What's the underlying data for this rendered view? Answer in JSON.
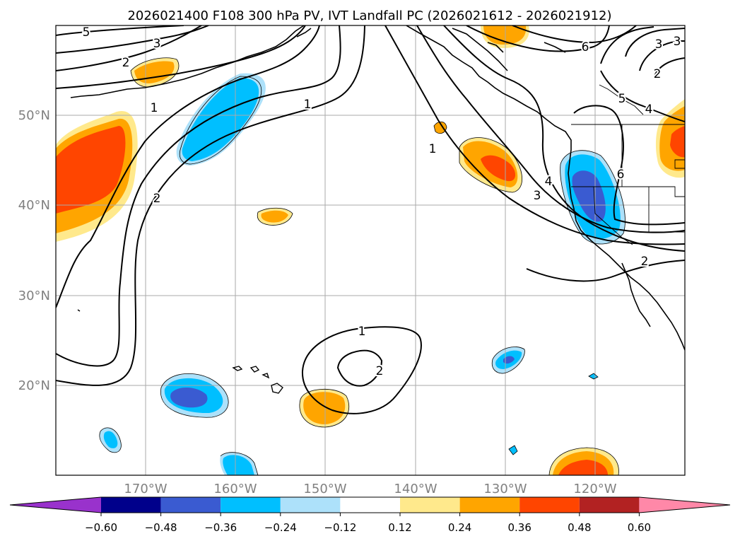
{
  "title": "2026021400 F108 300 hPa PV, IVT Landfall PC (2026021612 - 2026021912)",
  "axes": {
    "lon_ticks": [
      "170°W",
      "160°W",
      "150°W",
      "140°W",
      "130°W",
      "120°W"
    ],
    "lat_ticks": [
      "50°N",
      "40°N",
      "30°N",
      "20°N"
    ]
  },
  "colorbar": {
    "tick_labels": [
      "−0.60",
      "−0.48",
      "−0.36",
      "−0.24",
      "−0.12",
      "0.12",
      "0.24",
      "0.36",
      "0.48",
      "0.60"
    ],
    "colors": {
      "below_min": "#9932cc",
      "n060_n048": "#00008b",
      "n048_n036": "#3a5bd1",
      "n036_n024": "#00bfff",
      "n024_n012": "#ade1fa",
      "n012_p012": "#ffffff",
      "p012_p024": "#ffe98c",
      "p024_p036": "#ffa500",
      "p036_p048": "#ff4500",
      "p048_p060": "#b22222",
      "above_max": "#ff88a8"
    }
  },
  "contour_labels": [
    "5",
    "3",
    "2",
    "1",
    "1",
    "2",
    "1",
    "2",
    "1",
    "3",
    "4",
    "6",
    "6",
    "5",
    "4",
    "3",
    "2",
    "2",
    "3"
  ]
}
